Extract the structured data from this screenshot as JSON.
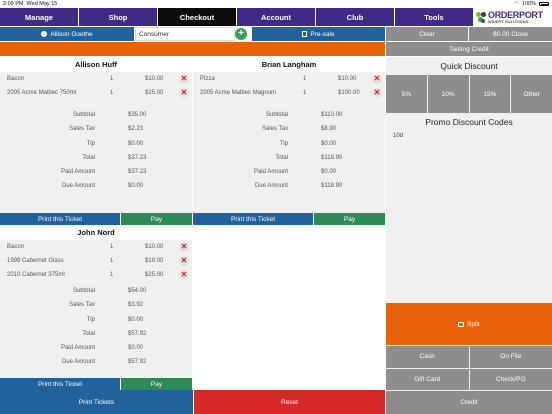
{
  "status_bar": {
    "time": "2:09 PM",
    "date": "Wed May 15",
    "battery": "100%"
  },
  "nav": {
    "tabs": [
      {
        "label": "Manage"
      },
      {
        "label": "Shop"
      },
      {
        "label": "Checkout",
        "active": true
      },
      {
        "label": "Account"
      },
      {
        "label": "Club"
      },
      {
        "label": "Tools"
      }
    ],
    "logo": {
      "line1": "ORDERPORT",
      "line2": "WINERY SOLUTIONS"
    }
  },
  "customer": {
    "name": "Allison Goethe",
    "type": "Consumer",
    "presale_label": "Pre-sale"
  },
  "actions": {
    "clear": "Clear",
    "close": "$0.00 Close",
    "tasting_credit": "Tasting Credit"
  },
  "tickets": [
    {
      "name": "Allison Huff",
      "items": [
        {
          "name": "Bacon",
          "qty": "1",
          "price": "$10.00"
        },
        {
          "name": "2005 Acme Malbec 750ml",
          "qty": "1",
          "price": "$25.00"
        }
      ],
      "summary": [
        {
          "label": "Subtotal",
          "value": "$35.00"
        },
        {
          "label": "Sales Tax",
          "value": "$2.23"
        },
        {
          "label": "Tip",
          "value": "$0.00"
        },
        {
          "label": "Total",
          "value": "$37.23"
        },
        {
          "label": "Paid Amount",
          "value": "$37.23"
        },
        {
          "label": "Due Amount",
          "value": "$0.00"
        }
      ],
      "print_label": "Print this Ticket",
      "pay_label": "Pay"
    },
    {
      "name": "Brian Langham",
      "items": [
        {
          "name": "Pizza",
          "qty": "1",
          "price": "$10.00"
        },
        {
          "name": "2005 Acme Malbec Magnum",
          "qty": "1",
          "price": "$100.00"
        }
      ],
      "summary": [
        {
          "label": "Subtotal",
          "value": "$110.00"
        },
        {
          "label": "Sales Tax",
          "value": "$8.90"
        },
        {
          "label": "Tip",
          "value": "$0.00"
        },
        {
          "label": "Total",
          "value": "$118.90"
        },
        {
          "label": "Paid Amount",
          "value": "$0.00"
        },
        {
          "label": "Due Amount",
          "value": "$118.90"
        }
      ],
      "print_label": "Print this Ticket",
      "pay_label": "Pay"
    },
    {
      "name": "John Nord",
      "items": [
        {
          "name": "Bacon",
          "qty": "1",
          "price": "$10.00"
        },
        {
          "name": "1999 Cabernet Glass",
          "qty": "1",
          "price": "$19.00"
        },
        {
          "name": "2010 Cabernet 375ml",
          "qty": "1",
          "price": "$25.00"
        }
      ],
      "summary": [
        {
          "label": "Subtotal",
          "value": "$54.00"
        },
        {
          "label": "Sales Tax",
          "value": "$3.92"
        },
        {
          "label": "Tip",
          "value": "$0.00"
        },
        {
          "label": "Total",
          "value": "$57.92"
        },
        {
          "label": "Paid Amount",
          "value": "$0.00"
        },
        {
          "label": "Due Amount",
          "value": "$57.92"
        }
      ],
      "print_label": "Print this Ticket",
      "pay_label": "Pay"
    }
  ],
  "bottom": {
    "print_tickets": "Print Tickets",
    "reset": "Reset"
  },
  "right_panel": {
    "quick_discount_title": "Quick Discount",
    "discounts": [
      "5%",
      "10%",
      "15%",
      "Other"
    ],
    "promo_title": "Promo Discount Codes",
    "promo_codes": [
      "10d"
    ],
    "split_label": "Split",
    "payments": [
      "Cash",
      "On File",
      "Gift Card",
      "Check/PO"
    ],
    "credit_label": "Credit"
  },
  "colors": {
    "nav": "#3f2a86",
    "nav_active": "#0d0d0d",
    "blue": "#21619c",
    "green": "#2f8a57",
    "orange": "#e8620a",
    "red": "#d62828",
    "gray": "#8d8d8d"
  }
}
